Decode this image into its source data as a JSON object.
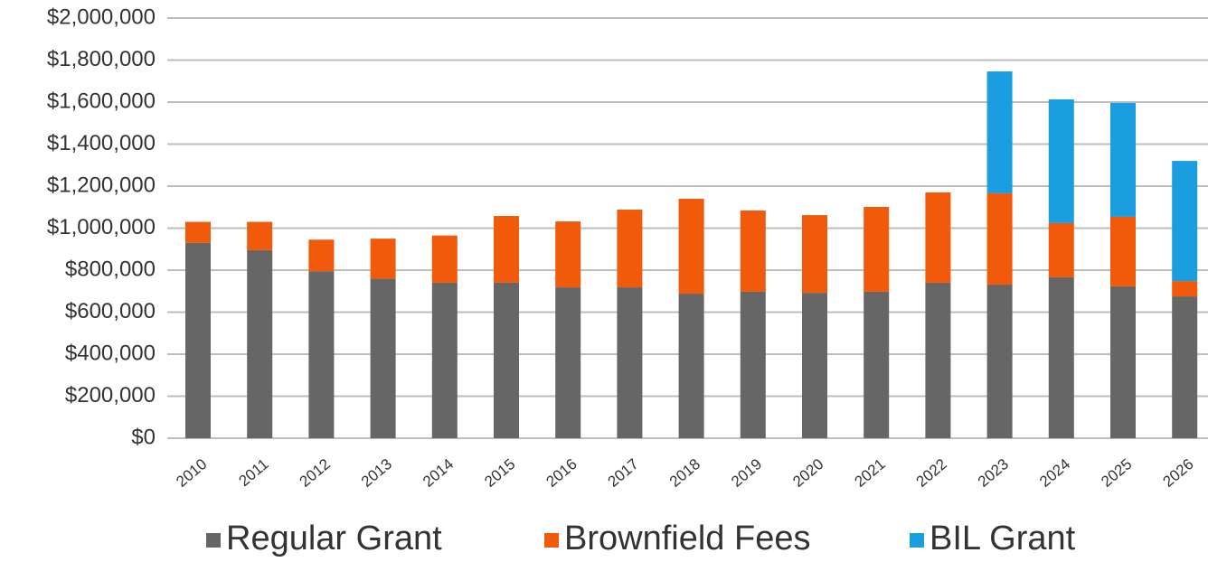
{
  "chart_data": {
    "type": "stacked_bar",
    "categories": [
      "2010",
      "2011",
      "2012",
      "2013",
      "2014",
      "2015",
      "2016",
      "2017",
      "2018",
      "2019",
      "2020",
      "2021",
      "2022",
      "2023",
      "2024",
      "2025",
      "2026"
    ],
    "series": [
      {
        "name": "Regular Grant",
        "color": "#666666",
        "values": [
          930000,
          895000,
          795000,
          760000,
          740000,
          740000,
          718000,
          718000,
          688000,
          697000,
          692000,
          697000,
          740000,
          731000,
          766000,
          723000,
          675000
        ]
      },
      {
        "name": "Brownfield Fees",
        "color": "#f05a0a",
        "values": [
          100000,
          135000,
          150000,
          190000,
          225000,
          318000,
          314000,
          370000,
          452000,
          387000,
          370000,
          404000,
          430000,
          435000,
          258000,
          331000,
          73000
        ]
      },
      {
        "name": "BIL Grant",
        "color": "#1a9ee0",
        "values": [
          0,
          0,
          0,
          0,
          0,
          0,
          0,
          0,
          0,
          0,
          0,
          0,
          0,
          580000,
          589000,
          542000,
          572000
        ]
      }
    ],
    "ylim": [
      0,
      2000000
    ],
    "yticks": [
      {
        "value": 0,
        "label": "$0"
      },
      {
        "value": 200000,
        "label": "$200,000"
      },
      {
        "value": 400000,
        "label": "$400,000"
      },
      {
        "value": 600000,
        "label": "$600,000"
      },
      {
        "value": 800000,
        "label": "$800,000"
      },
      {
        "value": 1000000,
        "label": "$1,000,000"
      },
      {
        "value": 1200000,
        "label": "$1,200,000"
      },
      {
        "value": 1400000,
        "label": "$1,400,000"
      },
      {
        "value": 1600000,
        "label": "$1,600,000"
      },
      {
        "value": 1800000,
        "label": "$1,800,000"
      },
      {
        "value": 2000000,
        "label": "$2,000,000"
      }
    ],
    "grid": true,
    "legend": "bottom"
  }
}
